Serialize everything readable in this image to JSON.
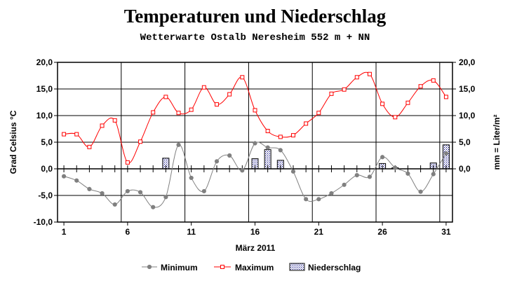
{
  "chart_data": {
    "type": "line",
    "title": "Temperaturen und  Niederschlag",
    "subtitle": "Wetterwarte Ostalb Neresheim 552 m + NN",
    "xlabel": "März 2011",
    "ylabel": "Grad Celsius °C",
    "y2label": "mm = Liter/m²",
    "xlim": [
      0.5,
      31.5
    ],
    "ylim": [
      -10,
      20
    ],
    "y2lim": [
      0,
      20
    ],
    "grid": true,
    "legend_position": "bottom",
    "x_tick_labels": [
      "1",
      "6",
      "11",
      "16",
      "21",
      "26",
      "31"
    ],
    "y_tick_labels": [
      "20,0",
      "15,0",
      "10,0",
      "5,0",
      "0,0",
      "-5,0",
      "-10,0"
    ],
    "y2_tick_labels": [
      "20,0",
      "15,0",
      "10,0",
      "5,0",
      "0,0"
    ],
    "x": [
      1,
      2,
      3,
      4,
      5,
      6,
      7,
      8,
      9,
      10,
      11,
      12,
      13,
      14,
      15,
      16,
      17,
      18,
      19,
      20,
      21,
      22,
      23,
      24,
      25,
      26,
      27,
      28,
      29,
      30,
      31
    ],
    "series": [
      {
        "name": "Minimum",
        "type": "line",
        "color": "#808080",
        "marker": "circle",
        "values": [
          -1.4,
          -2.2,
          -3.8,
          -4.6,
          -6.7,
          -4.2,
          -4.4,
          -7.2,
          -5.3,
          4.5,
          -1.7,
          -4.2,
          1.4,
          2.5,
          -0.3,
          4.8,
          4.0,
          3.5,
          -0.5,
          -5.7,
          -5.7,
          -4.6,
          -3.0,
          -1.2,
          -1.5,
          2.2,
          0.2,
          -0.9,
          -4.3,
          -1.0,
          2.9
        ]
      },
      {
        "name": "Maximum",
        "type": "line",
        "color": "#ff0000",
        "marker": "square",
        "values": [
          6.5,
          6.5,
          4.1,
          8.1,
          9.1,
          1.2,
          5.1,
          10.6,
          13.5,
          10.5,
          11.1,
          15.3,
          12.1,
          14.0,
          17.2,
          11.0,
          7.1,
          6.0,
          6.3,
          8.5,
          10.5,
          14.1,
          14.9,
          17.2,
          17.8,
          12.2,
          9.7,
          12.4,
          15.5,
          16.6,
          13.5
        ]
      },
      {
        "name": "Niederschlag",
        "type": "bar",
        "axis": "right",
        "color": "#000080",
        "values": [
          0,
          0,
          0,
          0,
          0,
          0,
          0,
          0,
          2.0,
          0,
          0,
          0,
          0,
          0,
          0,
          1.9,
          3.6,
          1.6,
          0,
          0,
          0,
          0,
          0,
          0,
          0,
          1.0,
          0.2,
          0,
          0,
          1.1,
          4.5
        ]
      }
    ]
  }
}
